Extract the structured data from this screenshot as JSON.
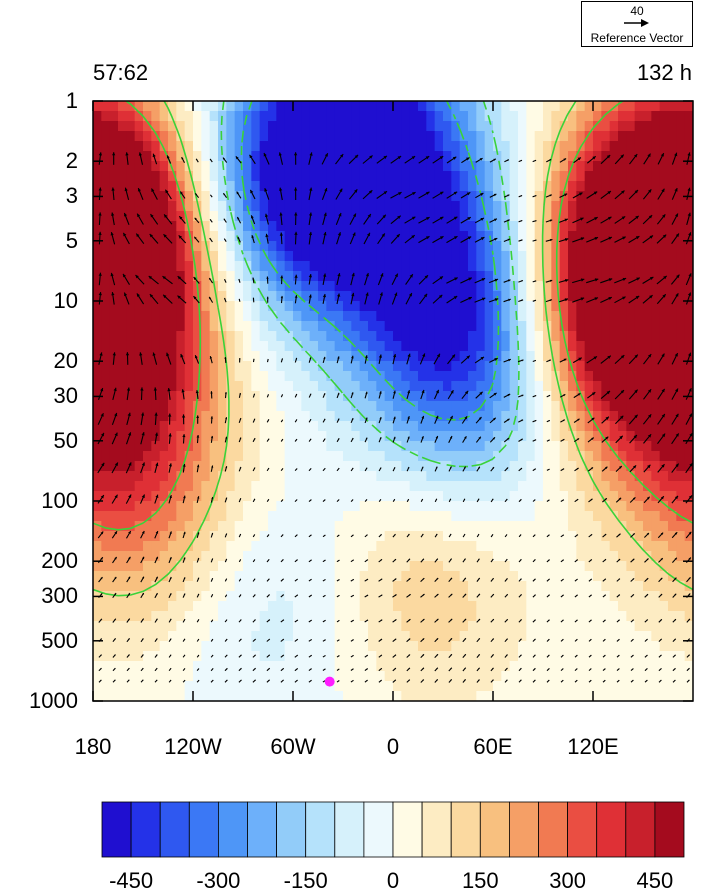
{
  "panel": {
    "left_label": "57:62",
    "right_label": "132 h"
  },
  "reference_vector": {
    "magnitude": "40",
    "label": "Reference Vector",
    "arrow_icon": "right-arrow-icon"
  },
  "colors": {
    "palette": [
      "#1f0fd0",
      "#2432e8",
      "#2f58f0",
      "#3b78f5",
      "#4e96f7",
      "#6db0fa",
      "#92ccf9",
      "#b5e2fb",
      "#d6f1fb",
      "#ecf9fd",
      "#fffbe5",
      "#fdecc3",
      "#fbd9a0",
      "#f8c07f",
      "#f59f66",
      "#f17a52",
      "#ea4e42",
      "#df3036",
      "#c8202c",
      "#a40b1e"
    ],
    "contour_line": "#3ad23a",
    "marker": "#ff1cff"
  },
  "chart_data": {
    "type": "heatmap",
    "subtype": "longitude-pressure cross section with contour lines and wind vectors",
    "x_ticks": [
      "180",
      "120W",
      "60W",
      "0",
      "60E",
      "120E"
    ],
    "x_tick_values": [
      -180,
      -120,
      -60,
      0,
      60,
      120
    ],
    "xlim": [
      -180,
      180
    ],
    "y_ticks": [
      "1",
      "2",
      "3",
      "5",
      "10",
      "20",
      "30",
      "50",
      "100",
      "200",
      "300",
      "500",
      "1000"
    ],
    "y_tick_values": [
      1,
      2,
      3,
      5,
      10,
      20,
      30,
      50,
      100,
      200,
      300,
      500,
      1000
    ],
    "ylim": [
      1000,
      1
    ],
    "y_scale": "log",
    "colorbar": {
      "levels": [
        -450,
        -400,
        -350,
        -300,
        -250,
        -200,
        -150,
        -100,
        -50,
        0,
        50,
        100,
        150,
        200,
        250,
        300,
        350,
        400,
        450
      ],
      "tick_labels": [
        "-450",
        "-300",
        "-150",
        "0",
        "150",
        "300",
        "450"
      ],
      "tick_values": [
        -450,
        -300,
        -150,
        0,
        150,
        300,
        450
      ],
      "extends": "both"
    },
    "field_centers": [
      {
        "lon": -170,
        "p": 7,
        "value": 480
      },
      {
        "lon": -165,
        "p": 40,
        "value": 300
      },
      {
        "lon": -150,
        "p": 150,
        "value": 150
      },
      {
        "lon": 170,
        "p": 3,
        "value": 480
      },
      {
        "lon": 140,
        "p": 8,
        "value": 350
      },
      {
        "lon": 130,
        "p": 20,
        "value": 200
      },
      {
        "lon": -20,
        "p": 1.5,
        "value": -480
      },
      {
        "lon": 30,
        "p": 8,
        "value": -400
      },
      {
        "lon": -60,
        "p": 3,
        "value": -350
      },
      {
        "lon": 50,
        "p": 30,
        "value": -250
      },
      {
        "lon": 20,
        "p": 250,
        "value": 150
      },
      {
        "lon": -75,
        "p": 300,
        "value": -100
      }
    ],
    "contour_style": {
      "positive": "solid",
      "negative": "dashed"
    },
    "markers": [
      {
        "lon": -38,
        "p": 800
      }
    ],
    "vector_levels": [
      2,
      3,
      4,
      5,
      8,
      10,
      20,
      30,
      40,
      50,
      70,
      100,
      150,
      200,
      250,
      300,
      400,
      500,
      600,
      700,
      800
    ],
    "grid": false,
    "legend": "bottom"
  }
}
